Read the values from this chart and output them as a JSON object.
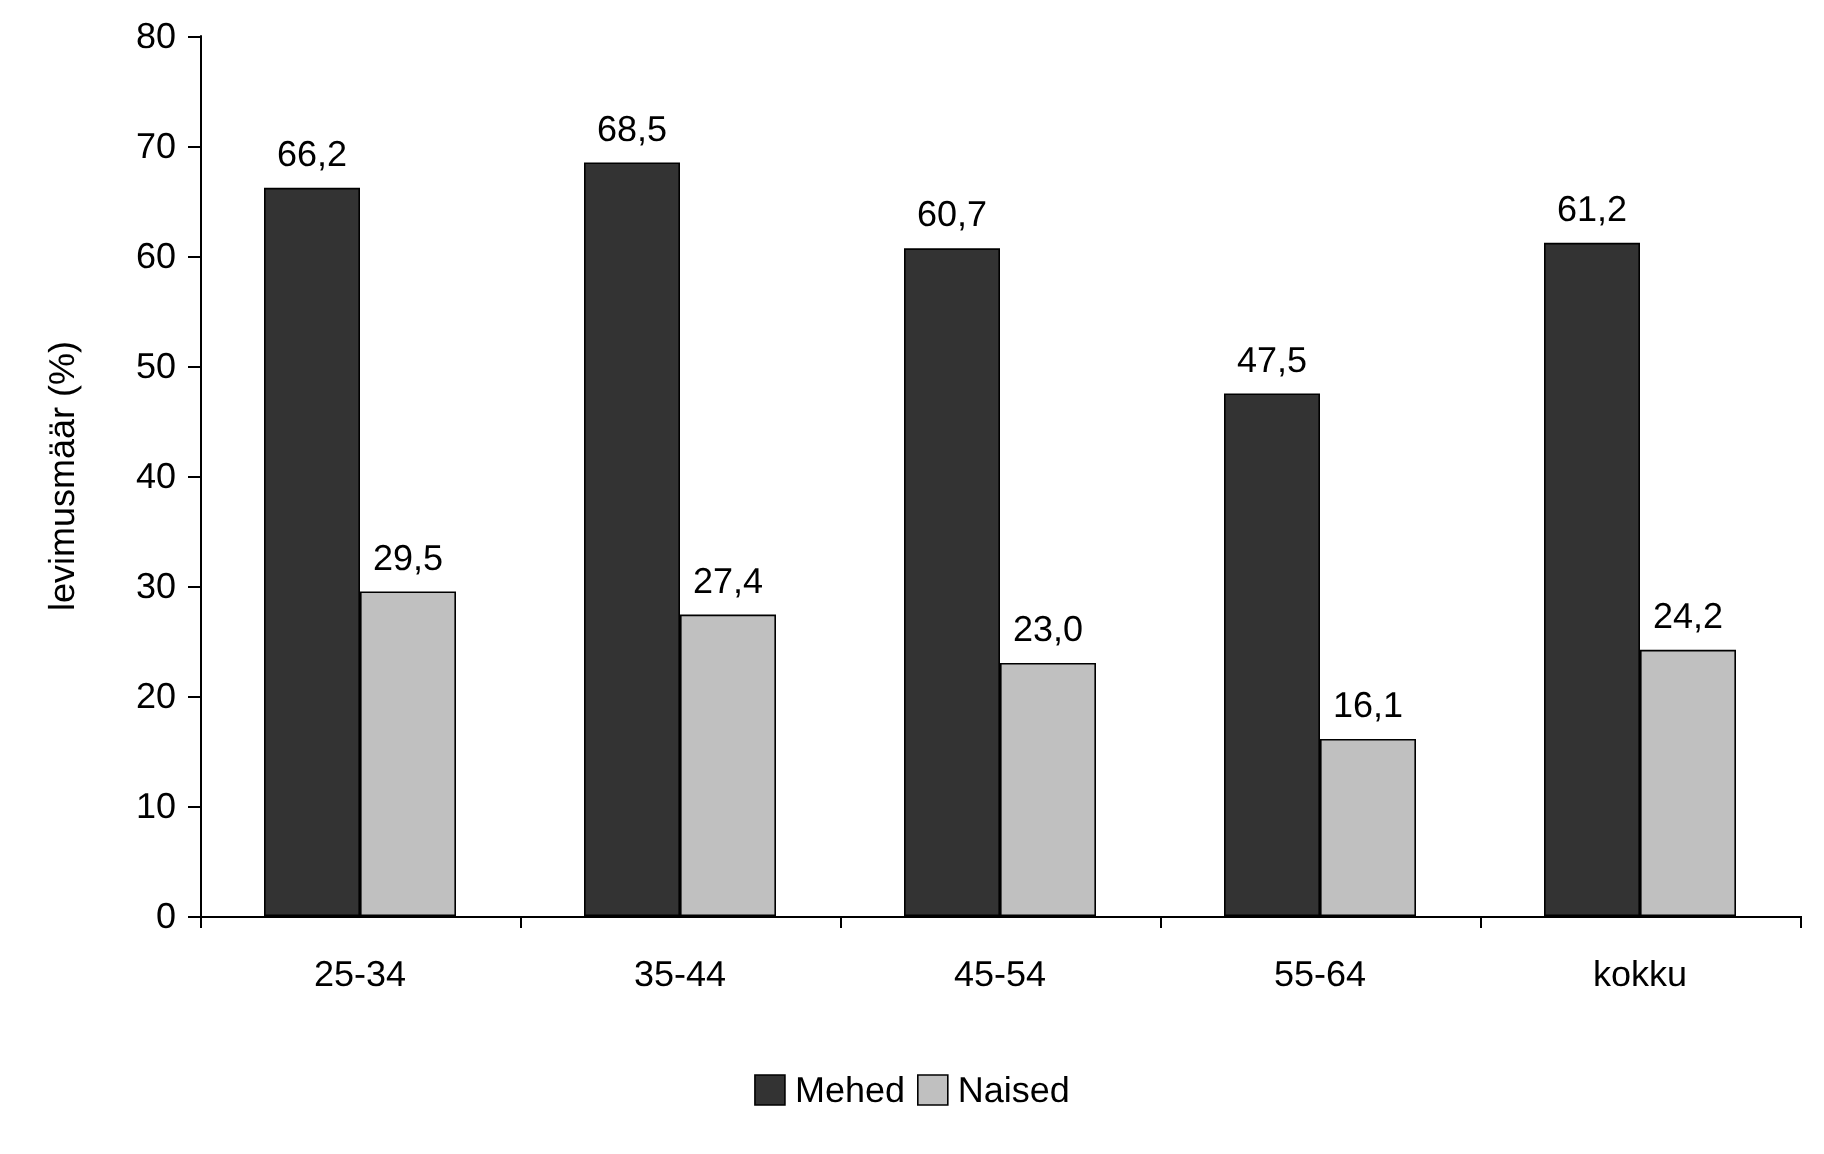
{
  "chart_data": {
    "type": "bar",
    "ylabel": "levimusmäär (%)",
    "categories": [
      "25-34",
      "35-44",
      "45-54",
      "55-64",
      "kokku"
    ],
    "series": [
      {
        "name": "Mehed",
        "color": "#333333",
        "values": [
          66.2,
          68.5,
          60.7,
          47.5,
          61.2
        ],
        "value_labels": [
          "66,2",
          "68,5",
          "60,7",
          "47,5",
          "61,2"
        ]
      },
      {
        "name": "Naised",
        "color": "#c0c0c0",
        "values": [
          29.5,
          27.4,
          23.0,
          16.1,
          24.2
        ],
        "value_labels": [
          "29,5",
          "27,4",
          "23,0",
          "16,1",
          "24,2"
        ]
      }
    ],
    "ylim": [
      0,
      80
    ],
    "yticks": [
      0,
      10,
      20,
      30,
      40,
      50,
      60,
      70,
      80
    ],
    "grid": false,
    "legend": "bottom"
  }
}
